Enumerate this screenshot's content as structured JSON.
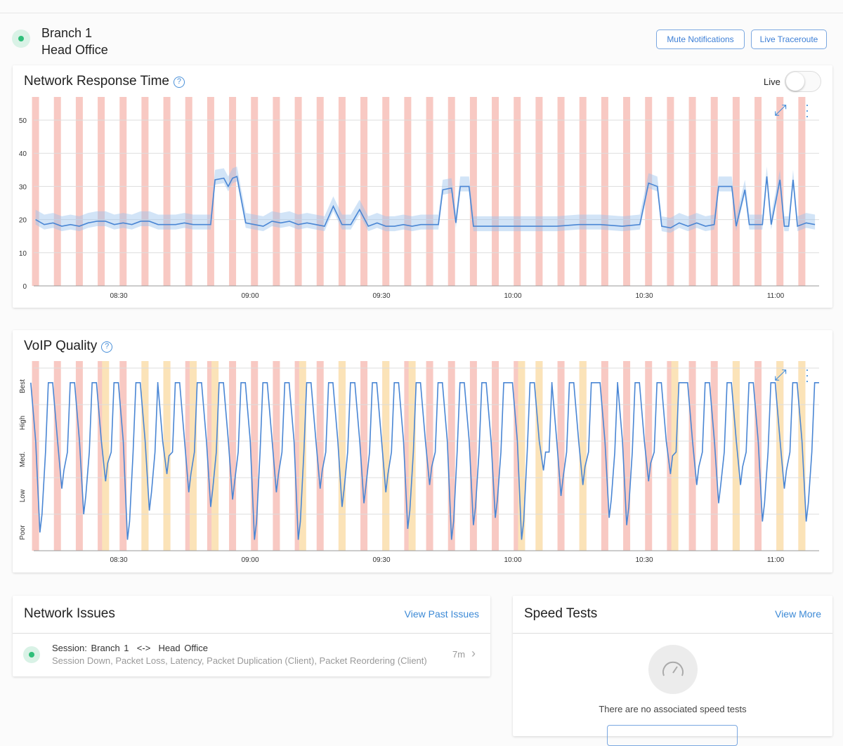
{
  "header": {
    "branch": "Branch 1",
    "site": "Head Office",
    "status_color": "#2fbf7a",
    "buttons": [
      "Mute Notifications",
      "Live Traceroute"
    ]
  },
  "response_chart": {
    "title": "Network Response Time",
    "live_label": "Live",
    "live_on": false
  },
  "voip_chart": {
    "title": "VoIP Quality"
  },
  "chart_data": [
    {
      "type": "line",
      "title": "Network Response Time",
      "ylim": [
        0,
        55
      ],
      "yticks": [
        0,
        10,
        20,
        30,
        40,
        50
      ],
      "xticks": [
        "08:30",
        "09:00",
        "09:30",
        "10:00",
        "10:30",
        "11:00"
      ],
      "xrange": [
        "08:11",
        "11:10"
      ],
      "issue_color": "#f8c9c3",
      "line_color": "#4a86d4",
      "issue_times": [
        "08:11",
        "08:16",
        "08:21",
        "08:26",
        "08:31",
        "08:36",
        "08:41",
        "08:46",
        "08:51",
        "08:56",
        "09:01",
        "09:06",
        "09:11",
        "09:16",
        "09:21",
        "09:26",
        "09:31",
        "09:36",
        "09:41",
        "09:46",
        "09:51",
        "09:56",
        "10:01",
        "10:06",
        "10:11",
        "10:16",
        "10:21",
        "10:26",
        "10:31",
        "10:36",
        "10:41",
        "10:46",
        "10:51",
        "10:56",
        "11:01",
        "11:06"
      ],
      "points": [
        [
          "08:11",
          20
        ],
        [
          "08:13",
          18.5
        ],
        [
          "08:15",
          19
        ],
        [
          "08:17",
          18
        ],
        [
          "08:19",
          18.5
        ],
        [
          "08:21",
          18
        ],
        [
          "08:23",
          19
        ],
        [
          "08:25",
          19.5
        ],
        [
          "08:27",
          19.5
        ],
        [
          "08:29",
          18.5
        ],
        [
          "08:31",
          19
        ],
        [
          "08:33",
          18.5
        ],
        [
          "08:35",
          19.5
        ],
        [
          "08:37",
          19.5
        ],
        [
          "08:39",
          18.5
        ],
        [
          "08:41",
          18.5
        ],
        [
          "08:43",
          18.5
        ],
        [
          "08:45",
          19
        ],
        [
          "08:47",
          18.5
        ],
        [
          "08:49",
          18.5
        ],
        [
          "08:51",
          18.5
        ],
        [
          "08:52",
          32
        ],
        [
          "08:54",
          32.5
        ],
        [
          "08:55",
          30
        ],
        [
          "08:56",
          32.5
        ],
        [
          "08:57",
          33
        ],
        [
          "08:59",
          19
        ],
        [
          "09:01",
          18.5
        ],
        [
          "09:03",
          18
        ],
        [
          "09:05",
          19.5
        ],
        [
          "09:07",
          19
        ],
        [
          "09:09",
          19.5
        ],
        [
          "09:11",
          18.5
        ],
        [
          "09:13",
          19
        ],
        [
          "09:15",
          18.5
        ],
        [
          "09:17",
          18
        ],
        [
          "09:19",
          24
        ],
        [
          "09:21",
          18.5
        ],
        [
          "09:23",
          18.5
        ],
        [
          "09:25",
          23
        ],
        [
          "09:27",
          18
        ],
        [
          "09:29",
          19
        ],
        [
          "09:31",
          18
        ],
        [
          "09:33",
          18
        ],
        [
          "09:35",
          18.5
        ],
        [
          "09:37",
          18
        ],
        [
          "09:39",
          18.5
        ],
        [
          "09:41",
          18.5
        ],
        [
          "09:43",
          18.5
        ],
        [
          "09:44",
          29
        ],
        [
          "09:46",
          29.5
        ],
        [
          "09:47",
          19
        ],
        [
          "09:48",
          30
        ],
        [
          "09:50",
          30
        ],
        [
          "09:51",
          18
        ],
        [
          "09:55",
          18
        ],
        [
          "10:00",
          18
        ],
        [
          "10:05",
          18
        ],
        [
          "10:10",
          18
        ],
        [
          "10:15",
          18.5
        ],
        [
          "10:20",
          18.5
        ],
        [
          "10:25",
          18
        ],
        [
          "10:29",
          18.5
        ],
        [
          "10:31",
          31
        ],
        [
          "10:33",
          30
        ],
        [
          "10:34",
          18
        ],
        [
          "10:36",
          17.5
        ],
        [
          "10:38",
          19
        ],
        [
          "10:40",
          18
        ],
        [
          "10:42",
          19
        ],
        [
          "10:44",
          18
        ],
        [
          "10:46",
          18.5
        ],
        [
          "10:47",
          30
        ],
        [
          "10:49",
          30
        ],
        [
          "10:50",
          30
        ],
        [
          "10:51",
          18
        ],
        [
          "10:53",
          29
        ],
        [
          "10:54",
          18.5
        ],
        [
          "10:57",
          18.5
        ],
        [
          "10:58",
          33
        ],
        [
          "10:59",
          18.5
        ],
        [
          "11:01",
          32
        ],
        [
          "11:02",
          18
        ],
        [
          "11:03",
          18
        ],
        [
          "11:04",
          32
        ],
        [
          "11:05",
          18
        ],
        [
          "11:07",
          19
        ],
        [
          "11:09",
          18.5
        ]
      ]
    },
    {
      "type": "line",
      "title": "VoIP Quality",
      "ylabels": [
        "Poor",
        "Low",
        "Med.",
        "High",
        "Best"
      ],
      "xticks": [
        "08:30",
        "09:00",
        "09:30",
        "10:00",
        "10:30",
        "11:00"
      ],
      "xrange": [
        "08:11",
        "11:10"
      ],
      "issue_color": "#f8c9c3",
      "warning_color": "#fbe3b8",
      "line_color": "#4a86d4",
      "issue_times": [
        "08:11",
        "08:16",
        "08:21",
        "08:26",
        "08:31",
        "08:36",
        "08:41",
        "08:46",
        "08:51",
        "08:56",
        "09:01",
        "09:06",
        "09:11",
        "09:16",
        "09:21",
        "09:26",
        "09:31",
        "09:36",
        "09:41",
        "09:46",
        "09:51",
        "09:56",
        "10:01",
        "10:06",
        "10:11",
        "10:16",
        "10:21",
        "10:26",
        "10:31",
        "10:36",
        "10:41",
        "10:46",
        "10:51",
        "10:56",
        "11:01",
        "11:06"
      ],
      "warning_times": [
        "08:27",
        "08:36",
        "08:41",
        "08:47",
        "08:52",
        "09:12",
        "09:21",
        "09:31",
        "09:37",
        "10:02",
        "10:06",
        "10:16",
        "10:37",
        "10:51",
        "11:01",
        "11:06"
      ],
      "best_value": 4,
      "dips": [
        [
          "08:12",
          0
        ],
        [
          "08:17",
          1.2
        ],
        [
          "08:22",
          0.5
        ],
        [
          "08:27",
          1.4
        ],
        [
          "08:32",
          -0.2
        ],
        [
          "08:37",
          0.6
        ],
        [
          "08:41",
          1.6
        ],
        [
          "08:46",
          1.1
        ],
        [
          "08:51",
          0.7
        ],
        [
          "08:56",
          0.9
        ],
        [
          "09:01",
          -0.2
        ],
        [
          "09:06",
          1.1
        ],
        [
          "09:11",
          -0.2
        ],
        [
          "09:16",
          1.2
        ],
        [
          "09:21",
          0.7
        ],
        [
          "09:26",
          0.8
        ],
        [
          "09:31",
          1.1
        ],
        [
          "09:36",
          0.1
        ],
        [
          "09:41",
          1.3
        ],
        [
          "09:46",
          -0.2
        ],
        [
          "09:51",
          0.2
        ],
        [
          "09:56",
          0.4
        ],
        [
          "10:02",
          -0.2
        ],
        [
          "10:07",
          1.7
        ],
        [
          "10:11",
          1
        ],
        [
          "10:16",
          1.3
        ],
        [
          "10:22",
          0.4
        ],
        [
          "10:26",
          0.2
        ],
        [
          "10:31",
          1.4
        ],
        [
          "10:36",
          1.6
        ],
        [
          "10:42",
          1.3
        ],
        [
          "10:47",
          0.8
        ],
        [
          "10:52",
          1.3
        ],
        [
          "10:57",
          0.3
        ],
        [
          "11:02",
          1.2
        ],
        [
          "11:07",
          0.3
        ]
      ]
    }
  ],
  "issues": {
    "title": "Network Issues",
    "link": "View Past Issues",
    "items": [
      {
        "session_label": "Session:",
        "from": "Branch 1",
        "arrow": "<->",
        "to": "Head Office",
        "details": "Session Down, Packet Loss, Latency, Packet Duplication (Client), Packet Reordering (Client)",
        "age": "7m"
      }
    ]
  },
  "speed": {
    "title": "Speed Tests",
    "link": "View More",
    "empty": "There are no associated speed tests"
  }
}
